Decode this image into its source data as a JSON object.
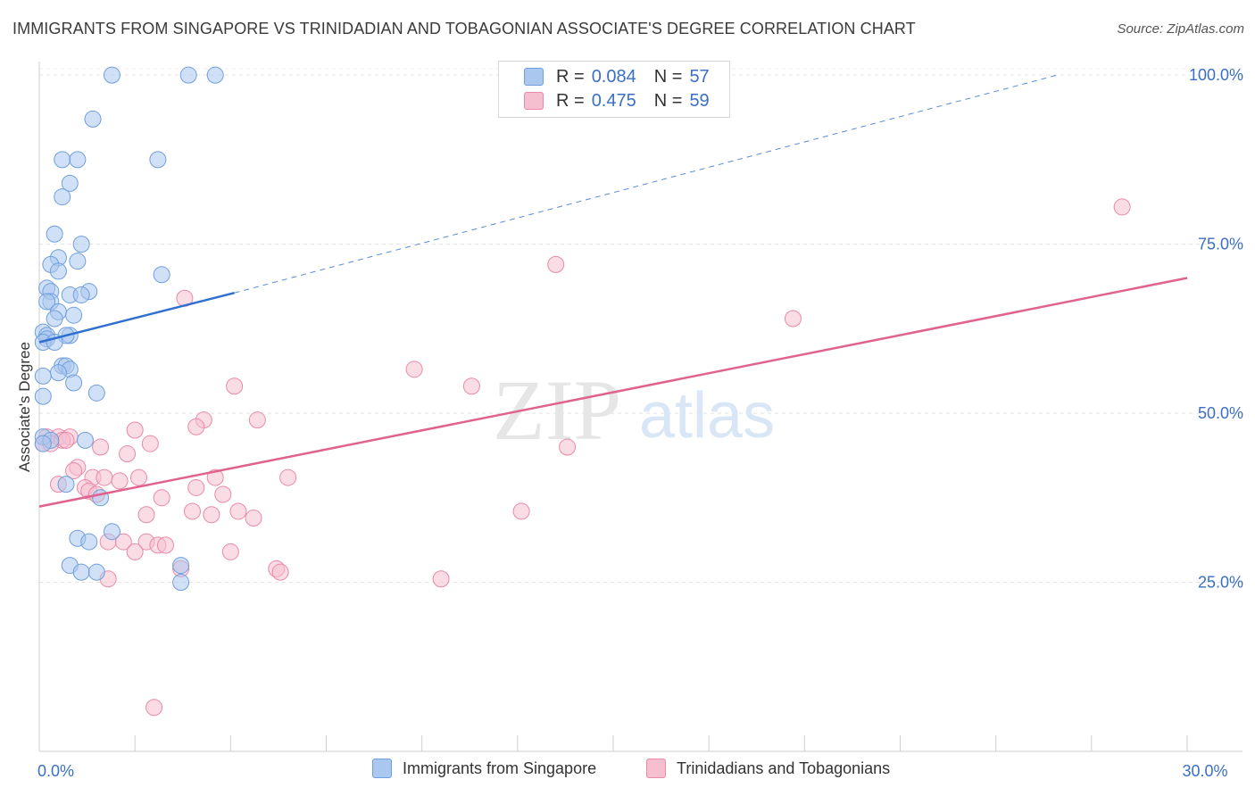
{
  "title": "IMMIGRANTS FROM SINGAPORE VS TRINIDADIAN AND TOBAGONIAN ASSOCIATE'S DEGREE CORRELATION CHART",
  "source": "Source: ZipAtlas.com",
  "watermark": {
    "zip": "ZIP",
    "atlas": "atlas"
  },
  "legend": {
    "rows": [
      {
        "r_label": "R =",
        "r_value": "0.084",
        "n_label": "N =",
        "n_value": "57"
      },
      {
        "r_label": "R =",
        "r_value": "0.475",
        "n_label": "N =",
        "n_value": "59"
      }
    ]
  },
  "bottom_legend": {
    "series1": "Immigrants from Singapore",
    "series2": "Trinidadians and Tobagonians"
  },
  "colors": {
    "blue_fill": "#a9c7ef",
    "blue_stroke": "#6f9fdd",
    "blue_line": "#2f6fcf",
    "pink_fill": "#f6bfd0",
    "pink_stroke": "#e98aa9",
    "pink_line": "#e0628e",
    "tick_label": "#3a6fc4"
  },
  "chart_data": {
    "type": "scatter",
    "title": "IMMIGRANTS FROM SINGAPORE VS TRINIDADIAN AND TOBAGONIAN ASSOCIATE'S DEGREE CORRELATION CHART",
    "xlabel": "",
    "ylabel": "Associate's Degree",
    "xlim": [
      0,
      30
    ],
    "ylim": [
      0,
      102
    ],
    "x_tick_labels": [
      {
        "value": 0,
        "label": "0.0%"
      },
      {
        "value": 30,
        "label": "30.0%"
      }
    ],
    "y_tick_labels": [
      {
        "value": 25,
        "label": "25.0%"
      },
      {
        "value": 50,
        "label": "50.0%"
      },
      {
        "value": 75,
        "label": "75.0%"
      },
      {
        "value": 100,
        "label": "100.0%"
      }
    ],
    "grid": true,
    "series": [
      {
        "name": "Immigrants from Singapore",
        "R": 0.084,
        "N": 57,
        "trend": {
          "x0": 0,
          "y0": 60.5,
          "x1": 5.1,
          "y1": 67.8,
          "dashed_to_x": 26.6,
          "dashed_to_y": 100
        },
        "points": [
          [
            1.9,
            100
          ],
          [
            3.9,
            100
          ],
          [
            4.6,
            100
          ],
          [
            1.4,
            93.5
          ],
          [
            0.6,
            87.5
          ],
          [
            1.0,
            87.5
          ],
          [
            3.1,
            87.5
          ],
          [
            0.8,
            84
          ],
          [
            0.6,
            82
          ],
          [
            0.4,
            76.5
          ],
          [
            1.1,
            75
          ],
          [
            0.5,
            73
          ],
          [
            1.0,
            72.5
          ],
          [
            0.3,
            72
          ],
          [
            0.5,
            71
          ],
          [
            3.2,
            70.5
          ],
          [
            0.2,
            68.5
          ],
          [
            0.3,
            68
          ],
          [
            0.8,
            67.5
          ],
          [
            1.3,
            68
          ],
          [
            1.1,
            67.5
          ],
          [
            0.3,
            66.5
          ],
          [
            0.2,
            66.5
          ],
          [
            0.5,
            65
          ],
          [
            0.9,
            64.5
          ],
          [
            0.4,
            64
          ],
          [
            0.1,
            62
          ],
          [
            0.2,
            61.5
          ],
          [
            0.8,
            61.5
          ],
          [
            0.7,
            61.5
          ],
          [
            0.2,
            61
          ],
          [
            0.1,
            60.5
          ],
          [
            0.4,
            60.5
          ],
          [
            0.6,
            57
          ],
          [
            0.7,
            57
          ],
          [
            0.8,
            56.5
          ],
          [
            0.5,
            56
          ],
          [
            0.1,
            55.5
          ],
          [
            0.9,
            54.5
          ],
          [
            1.5,
            53
          ],
          [
            0.1,
            52.5
          ],
          [
            0.1,
            46.5
          ],
          [
            0.3,
            46
          ],
          [
            1.2,
            46
          ],
          [
            0.1,
            45.5
          ],
          [
            0.7,
            39.5
          ],
          [
            1.6,
            37.5
          ],
          [
            1.9,
            32.5
          ],
          [
            1.0,
            31.5
          ],
          [
            1.3,
            31
          ],
          [
            0.8,
            27.5
          ],
          [
            3.7,
            27.5
          ],
          [
            1.1,
            26.5
          ],
          [
            1.5,
            26.5
          ],
          [
            3.7,
            25
          ]
        ]
      },
      {
        "name": "Trinidadians and Tobagonians",
        "R": 0.475,
        "N": 59,
        "trend": {
          "x0": 0,
          "y0": 36.2,
          "x1": 30,
          "y1": 70
        },
        "points": [
          [
            28.3,
            80.5
          ],
          [
            13.5,
            72
          ],
          [
            19.7,
            64
          ],
          [
            3.8,
            67
          ],
          [
            9.8,
            56.5
          ],
          [
            11.3,
            54
          ],
          [
            5.1,
            54
          ],
          [
            4.3,
            49
          ],
          [
            5.7,
            49
          ],
          [
            4.1,
            48
          ],
          [
            2.5,
            47.5
          ],
          [
            0.2,
            46.5
          ],
          [
            0.5,
            46.5
          ],
          [
            0.8,
            46.5
          ],
          [
            0.6,
            46
          ],
          [
            0.1,
            45.5
          ],
          [
            0.3,
            45.5
          ],
          [
            0.7,
            46
          ],
          [
            2.9,
            45.5
          ],
          [
            13.8,
            45
          ],
          [
            1.6,
            45
          ],
          [
            2.3,
            44
          ],
          [
            1.0,
            42
          ],
          [
            0.9,
            41.5
          ],
          [
            1.4,
            40.5
          ],
          [
            1.7,
            40.5
          ],
          [
            2.1,
            40
          ],
          [
            2.6,
            40.5
          ],
          [
            4.6,
            40.5
          ],
          [
            6.5,
            40.5
          ],
          [
            0.5,
            39.5
          ],
          [
            1.2,
            39
          ],
          [
            1.3,
            38.5
          ],
          [
            1.5,
            38
          ],
          [
            4.1,
            39
          ],
          [
            4.8,
            38
          ],
          [
            3.2,
            37.5
          ],
          [
            12.6,
            35.5
          ],
          [
            4.0,
            35.5
          ],
          [
            5.2,
            35.5
          ],
          [
            4.5,
            35
          ],
          [
            2.8,
            35
          ],
          [
            5.6,
            34.5
          ],
          [
            1.8,
            31
          ],
          [
            2.2,
            31
          ],
          [
            2.8,
            31
          ],
          [
            3.1,
            30.5
          ],
          [
            3.3,
            30.5
          ],
          [
            2.5,
            29.5
          ],
          [
            5.0,
            29.5
          ],
          [
            3.7,
            27
          ],
          [
            6.2,
            27
          ],
          [
            6.3,
            26.5
          ],
          [
            1.8,
            25.5
          ],
          [
            10.5,
            25.5
          ],
          [
            3.0,
            6.5
          ]
        ]
      }
    ]
  }
}
